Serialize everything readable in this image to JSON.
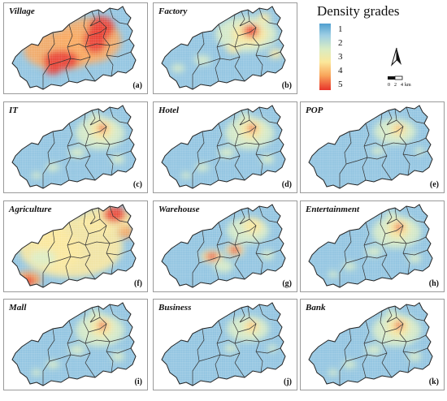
{
  "legend": {
    "title": "Density grades",
    "ticks": [
      "1",
      "2",
      "3",
      "4",
      "5"
    ],
    "colors": [
      "#4f9fd0",
      "#9fcfe3",
      "#d9ecc4",
      "#fbe79a",
      "#f9a55a",
      "#e8342b"
    ]
  },
  "scale": {
    "labels": [
      "0",
      "2",
      "4",
      "km"
    ]
  },
  "north_icon": "north-arrow-icon",
  "panels": [
    {
      "title": "Village",
      "label": "(a)"
    },
    {
      "title": "Factory",
      "label": "(b)"
    },
    {
      "title": "IT",
      "label": "(c)"
    },
    {
      "title": "Hotel",
      "label": "(d)"
    },
    {
      "title": "POP",
      "label": "(e)"
    },
    {
      "title": "Agriculture",
      "label": "(f)"
    },
    {
      "title": "Warehouse",
      "label": "(g)"
    },
    {
      "title": "Entertainment",
      "label": "(h)"
    },
    {
      "title": "Mall",
      "label": "(i)"
    },
    {
      "title": "Business",
      "label": "(j)"
    },
    {
      "title": "Bank",
      "label": "(k)"
    }
  ]
}
